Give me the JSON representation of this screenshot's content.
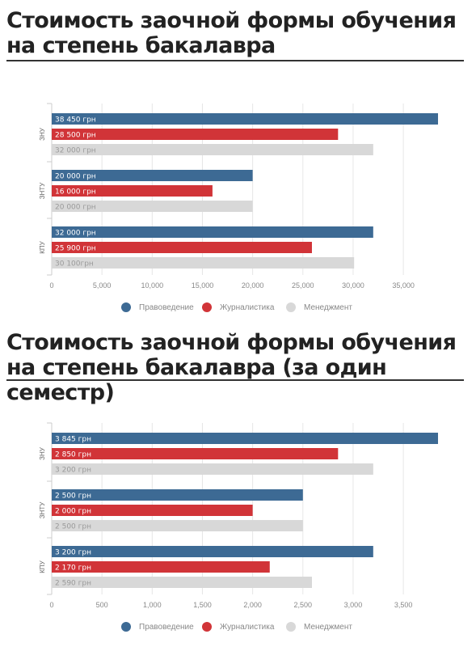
{
  "colors": {
    "Правоведение": "#3d6a94",
    "Журналистика": "#d13438",
    "Менеджмент": "#d8d8d8"
  },
  "chart_data": [
    {
      "type": "bar",
      "orientation": "horizontal",
      "title": "Стоимость заочной формы обучения на степень бакалавра",
      "categories": [
        "ЗНУ",
        "ЗНТУ",
        "КПУ"
      ],
      "series": [
        {
          "name": "Правоведение",
          "values": [
            38450,
            20000,
            32000
          ],
          "labels": [
            "38 450 грн",
            "20 000 грн",
            "32 000 грн"
          ]
        },
        {
          "name": "Журналистика",
          "values": [
            28500,
            16000,
            25900
          ],
          "labels": [
            "28 500 грн",
            "16 000 грн",
            "25 900 грн"
          ]
        },
        {
          "name": "Менеджмент",
          "values": [
            32000,
            20000,
            30100
          ],
          "labels": [
            "32 000 грн",
            "20 000 грн",
            "30 100грн"
          ]
        }
      ],
      "xticks": [
        "0",
        "5,000",
        "10,000",
        "15,000",
        "20,000",
        "25,000",
        "30,000",
        "35,000"
      ],
      "xtick_values": [
        0,
        5000,
        10000,
        15000,
        20000,
        25000,
        30000,
        35000
      ],
      "xlim": [
        0,
        38450
      ],
      "grid": true,
      "legend_position": "bottom"
    },
    {
      "type": "bar",
      "orientation": "horizontal",
      "title": "Стоимость заочной формы обучения на степень бакалавра  (за один семестр)",
      "categories": [
        "ЗНУ",
        "ЗНТУ",
        "КПУ"
      ],
      "series": [
        {
          "name": "Правоведение",
          "values": [
            3845,
            2500,
            3200
          ],
          "labels": [
            "3 845 грн",
            "2 500 грн",
            "3 200 грн"
          ]
        },
        {
          "name": "Журналистика",
          "values": [
            2850,
            2000,
            2170
          ],
          "labels": [
            "2 850 грн",
            "2 000 грн",
            "2 170 грн"
          ]
        },
        {
          "name": "Менеджмент",
          "values": [
            3200,
            2500,
            2590
          ],
          "labels": [
            "3 200 грн",
            "2 500 грн",
            "2 590 грн"
          ]
        }
      ],
      "xticks": [
        "0",
        "500",
        "1,000",
        "1,500",
        "2,000",
        "2,500",
        "3,000",
        "3,500"
      ],
      "xtick_values": [
        0,
        500,
        1000,
        1500,
        2000,
        2500,
        3000,
        3500
      ],
      "xlim": [
        0,
        3845
      ],
      "grid": true,
      "legend_position": "bottom"
    }
  ]
}
